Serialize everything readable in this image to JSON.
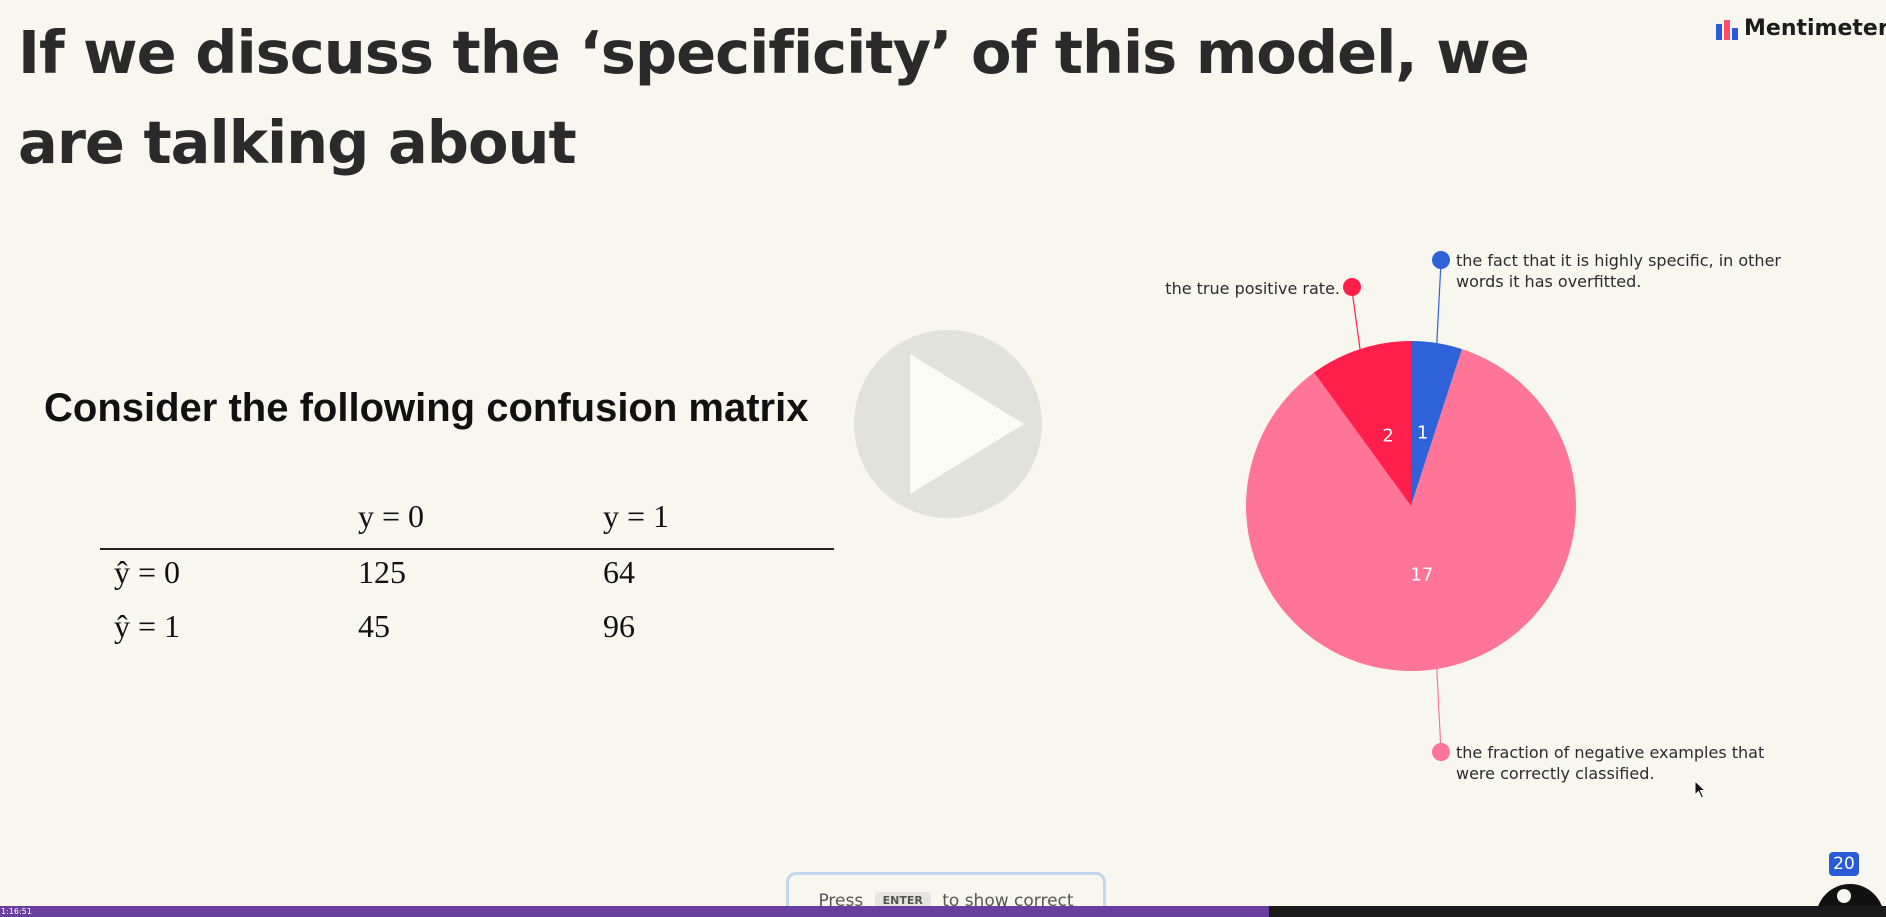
{
  "question": {
    "text": "If we discuss the ‘specificity’ of this model, we are talking about"
  },
  "brand": {
    "name": "Mentimeter"
  },
  "slide": {
    "heading": "Consider the following confusion matrix",
    "matrix": {
      "col_headers": [
        "y = 0",
        "y = 1"
      ],
      "rows": [
        {
          "label": "ŷ = 0",
          "values": [
            "125",
            "64"
          ]
        },
        {
          "label": "ŷ = 1",
          "values": [
            "45",
            "96"
          ]
        }
      ]
    }
  },
  "chart_data": {
    "type": "pie",
    "slices": [
      {
        "label": "the fact that it is highly specific, in other words it has overfitted.",
        "value": 1,
        "color": "#2f62d9"
      },
      {
        "label": "the fraction of negative examples that were correctly classified.",
        "value": 17,
        "color": "#ff7597"
      },
      {
        "label": "the true positive rate.",
        "value": 2,
        "color": "#ff1f4a"
      }
    ]
  },
  "hint": {
    "press": "Press",
    "key": "ENTER",
    "action": "to show correct"
  },
  "responses": {
    "count": "20",
    "badge_color": "#2a5bd7"
  },
  "video": {
    "timestamp": "1:16:51",
    "progress_fraction": 0.673,
    "progress_color": "#6a3da0"
  }
}
